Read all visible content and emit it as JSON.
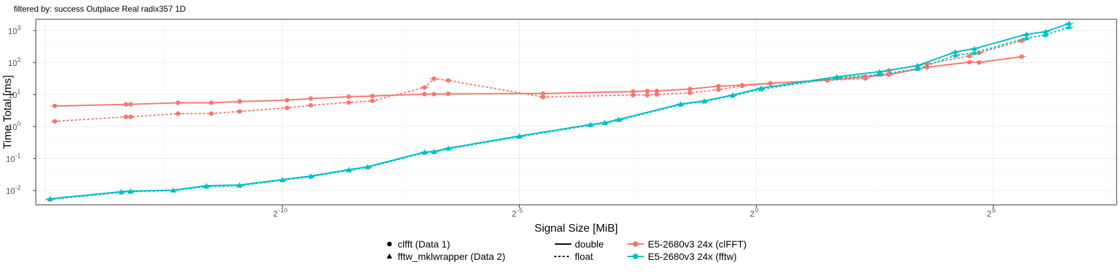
{
  "chart_data": {
    "type": "line",
    "subtitle": "filtered by: success Outplace Real radix357 1D",
    "xlabel": "Signal Size [MiB]",
    "ylabel": "Time Total [ms]",
    "x_scale": "log2",
    "y_scale": "log10",
    "xlim_log2": [
      -15.2,
      7.6
    ],
    "ylim_log10": [
      -2.45,
      3.35
    ],
    "grid": true,
    "x_ticks": [
      {
        "exp": -10,
        "base": "2",
        "sup": "-10"
      },
      {
        "exp": -5,
        "base": "2",
        "sup": "-5"
      },
      {
        "exp": 0,
        "base": "2",
        "sup": "0"
      },
      {
        "exp": 5,
        "base": "2",
        "sup": "5"
      }
    ],
    "y_ticks": [
      {
        "exp": -2,
        "base": "10",
        "sup": "-2"
      },
      {
        "exp": -1,
        "base": "10",
        "sup": "-1"
      },
      {
        "exp": 0,
        "base": "10",
        "sup": "0"
      },
      {
        "exp": 1,
        "base": "10",
        "sup": "1"
      },
      {
        "exp": 2,
        "base": "10",
        "sup": "2"
      },
      {
        "exp": 3,
        "base": "10",
        "sup": "3"
      }
    ],
    "colors": {
      "clfft": "#F8766D",
      "fftw": "#00BFC4"
    },
    "series": [
      {
        "name": "clfft double",
        "library": "clfft",
        "precision": "double",
        "marker": "circle",
        "line": "solid",
        "x_log2": [
          -14.8,
          -13.3,
          -13.2,
          -12.2,
          -11.5,
          -10.9,
          -9.9,
          -9.4,
          -8.6,
          -8.1,
          -7.0,
          -6.8,
          -6.5,
          -4.5,
          -2.6,
          -2.3,
          -2.1,
          -1.4,
          -0.8,
          -0.3,
          0.3,
          1.5,
          2.3,
          2.8,
          3.6,
          4.5,
          4.7,
          5.6
        ],
        "y_log10": [
          0.64,
          0.69,
          0.69,
          0.74,
          0.74,
          0.78,
          0.82,
          0.87,
          0.93,
          0.95,
          1.01,
          1.01,
          1.02,
          1.03,
          1.09,
          1.11,
          1.11,
          1.17,
          1.26,
          1.29,
          1.35,
          1.45,
          1.55,
          1.62,
          1.85,
          2.01,
          2.0,
          2.18
        ]
      },
      {
        "name": "clfft float",
        "library": "clfft",
        "precision": "float",
        "marker": "circle",
        "line": "dotted",
        "x_log2": [
          -14.8,
          -13.3,
          -13.2,
          -12.2,
          -11.5,
          -10.9,
          -9.9,
          -9.4,
          -8.6,
          -8.1,
          -7.0,
          -6.8,
          -6.5,
          -4.5,
          -2.6,
          -2.3,
          -2.1,
          -1.4,
          -0.8,
          -0.3,
          0.3,
          1.5,
          2.3,
          2.8,
          3.6,
          4.5,
          4.7,
          5.6
        ],
        "y_log10": [
          0.16,
          0.3,
          0.3,
          0.4,
          0.4,
          0.47,
          0.58,
          0.66,
          0.75,
          0.8,
          1.22,
          1.49,
          1.44,
          0.92,
          0.98,
          0.98,
          1.0,
          1.05,
          1.15,
          1.27,
          1.34,
          1.44,
          1.5,
          1.75,
          1.95,
          2.2,
          2.3,
          2.68
        ]
      },
      {
        "name": "fftw double",
        "library": "fftw",
        "precision": "double",
        "marker": "triangle",
        "line": "solid",
        "x_log2": [
          -14.9,
          -13.4,
          -13.2,
          -12.3,
          -11.6,
          -10.9,
          -10.0,
          -9.4,
          -8.6,
          -8.2,
          -7.0,
          -6.8,
          -6.5,
          -5.0,
          -3.5,
          -3.2,
          -2.9,
          -1.6,
          -1.1,
          -0.5,
          0.1,
          1.7,
          2.6,
          3.4,
          4.2,
          4.6,
          5.7,
          6.1,
          6.6
        ],
        "y_log10": [
          -2.26,
          -2.04,
          -2.02,
          -1.99,
          -1.85,
          -1.83,
          -1.66,
          -1.55,
          -1.35,
          -1.26,
          -0.8,
          -0.78,
          -0.68,
          -0.3,
          0.06,
          0.12,
          0.22,
          0.7,
          0.8,
          0.98,
          1.2,
          1.55,
          1.71,
          1.9,
          2.33,
          2.43,
          2.88,
          2.96,
          3.22
        ]
      },
      {
        "name": "fftw float",
        "library": "fftw",
        "precision": "float",
        "marker": "triangle",
        "line": "dotted",
        "x_log2": [
          -14.9,
          -13.4,
          -13.2,
          -12.3,
          -11.6,
          -10.9,
          -10.0,
          -9.4,
          -8.6,
          -8.2,
          -7.0,
          -6.8,
          -6.5,
          -5.0,
          -3.5,
          -3.2,
          -2.9,
          -1.6,
          -1.1,
          -0.5,
          0.1,
          1.7,
          2.6,
          3.4,
          4.2,
          4.6,
          5.7,
          6.1,
          6.6
        ],
        "y_log10": [
          -2.28,
          -2.06,
          -2.04,
          -2.0,
          -1.88,
          -1.85,
          -1.68,
          -1.57,
          -1.37,
          -1.28,
          -0.82,
          -0.8,
          -0.7,
          -0.32,
          0.04,
          0.1,
          0.2,
          0.68,
          0.78,
          0.96,
          1.16,
          1.52,
          1.62,
          1.8,
          2.22,
          2.3,
          2.76,
          2.86,
          3.1
        ]
      }
    ],
    "legend": {
      "placement": "bottom",
      "shape_items": [
        {
          "marker": "circle",
          "label": "clfft (Data 1)"
        },
        {
          "marker": "triangle",
          "label": "fftw_mklwrapper (Data 2)"
        }
      ],
      "line_items": [
        {
          "line": "solid",
          "label": "double"
        },
        {
          "line": "dotted",
          "label": "float"
        }
      ],
      "color_items": [
        {
          "color_key": "clfft",
          "label": "E5-2680v3 24x (clFFT)"
        },
        {
          "color_key": "fftw",
          "label": "E5-2680v3 24x (fftw)"
        }
      ]
    }
  }
}
